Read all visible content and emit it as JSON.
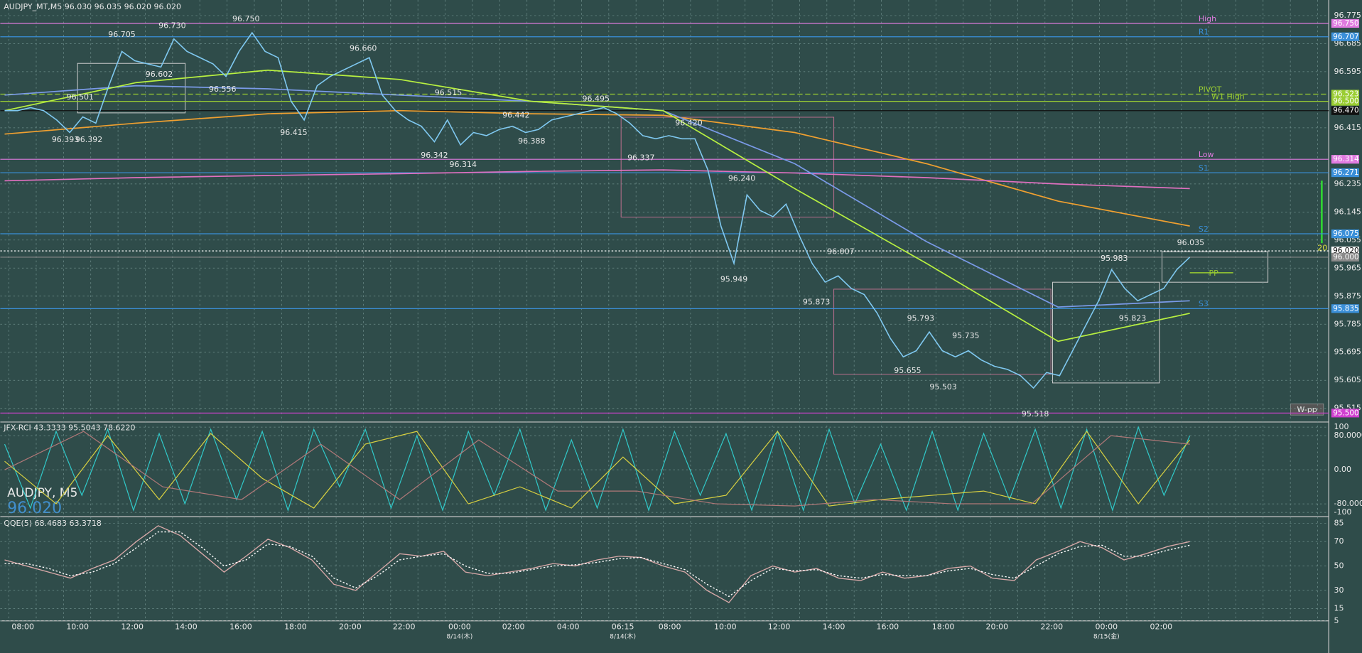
{
  "header": "AUDJPY_MT,M5  96.030 96.035 96.020 96.020",
  "watermark": {
    "symbol": "AUDJPY, M5",
    "price": "96.020"
  },
  "main": {
    "ylim": [
      95.474,
      96.825
    ],
    "yticks": [
      96.775,
      96.685,
      96.595,
      96.415,
      96.235,
      96.145,
      96.055,
      95.965,
      95.875,
      95.785,
      95.695,
      95.605,
      95.515
    ],
    "price": {
      "color": "#7fc8f0",
      "values": [
        96.47,
        96.47,
        96.48,
        96.47,
        96.44,
        96.4,
        96.45,
        96.43,
        96.55,
        96.66,
        96.63,
        96.62,
        96.61,
        96.7,
        96.66,
        96.64,
        96.62,
        96.58,
        96.66,
        96.72,
        96.66,
        96.64,
        96.5,
        96.44,
        96.55,
        96.58,
        96.6,
        96.62,
        96.64,
        96.52,
        96.47,
        96.44,
        96.42,
        96.37,
        96.44,
        96.36,
        96.4,
        96.39,
        96.41,
        96.42,
        96.4,
        96.41,
        96.44,
        96.45,
        96.46,
        96.47,
        96.48,
        96.46,
        96.43,
        96.39,
        96.38,
        96.39,
        96.38,
        96.38,
        96.28,
        96.1,
        95.98,
        96.2,
        96.15,
        96.13,
        96.17,
        96.07,
        95.98,
        95.92,
        95.94,
        95.9,
        95.88,
        95.82,
        95.74,
        95.68,
        95.7,
        95.76,
        95.7,
        95.68,
        95.7,
        95.67,
        95.65,
        95.64,
        95.62,
        95.58,
        95.63,
        95.62,
        95.7,
        95.78,
        95.86,
        95.96,
        95.9,
        95.86,
        95.88,
        95.9,
        95.96,
        96.0
      ]
    },
    "moving_averages": [
      {
        "color": "#f0a030",
        "values": [
          96.395,
          96.43,
          96.46,
          96.47,
          96.46,
          96.455,
          96.4,
          96.3,
          96.18,
          96.1
        ]
      },
      {
        "color": "#e070c0",
        "values": [
          96.245,
          96.255,
          96.262,
          96.268,
          96.275,
          96.28,
          96.27,
          96.255,
          96.235,
          96.22
        ]
      },
      {
        "color": "#7a9ae8",
        "values": [
          96.52,
          96.55,
          96.54,
          96.52,
          96.5,
          96.47,
          96.3,
          96.05,
          95.84,
          95.86
        ]
      },
      {
        "color": "#b8f040",
        "values": [
          96.47,
          96.56,
          96.6,
          96.57,
          96.5,
          96.47,
          96.22,
          95.98,
          95.73,
          95.82
        ]
      }
    ],
    "levels": [
      {
        "value": 96.75,
        "price_label": "96.750",
        "name": "High",
        "color": "#e07be0"
      },
      {
        "value": 96.707,
        "price_label": "96.707",
        "name": "R1",
        "color": "#3a8fd8"
      },
      {
        "value": 96.523,
        "price_label": "96.523",
        "name": "PIVOT",
        "color": "#9acd32"
      },
      {
        "value": 96.5,
        "price_label": "96.500",
        "name": "W1 High",
        "color": "#9acd32"
      },
      {
        "value": 96.47,
        "price_label": "96.470",
        "color": "#111111"
      },
      {
        "value": 96.314,
        "price_label": "96.314",
        "name": "Low",
        "color": "#e07be0"
      },
      {
        "value": 96.271,
        "price_label": "96.271",
        "name": "S1",
        "color": "#3a8fd8"
      },
      {
        "value": 96.075,
        "price_label": "96.075",
        "name": "S2",
        "color": "#3a8fd8"
      },
      {
        "value": 96.02,
        "price_label": "96.020",
        "color": "#ffffff"
      },
      {
        "value": 96.0,
        "price_label": "96.000",
        "color": "#8a8a8a"
      },
      {
        "value": 95.835,
        "price_label": "95.835",
        "name": "S3",
        "color": "#3a8fd8"
      },
      {
        "value": 95.5,
        "price_label": "95.500",
        "color": "#d040d0"
      }
    ],
    "pp": {
      "name": "PP",
      "value": 95.95,
      "color": "#9acd32"
    },
    "annotations": [
      {
        "value": 96.705,
        "label": "96.705"
      },
      {
        "value": 96.73,
        "label": "96.730"
      },
      {
        "value": 96.75,
        "label": "96.750"
      },
      {
        "value": 96.501,
        "label": "96.501"
      },
      {
        "value": 96.602,
        "label": "96.602"
      },
      {
        "value": 96.556,
        "label": "96.556"
      },
      {
        "value": 96.66,
        "label": "96.660"
      },
      {
        "value": 96.393,
        "label": "96.393"
      },
      {
        "value": 96.392,
        "label": "96.392"
      },
      {
        "value": 96.415,
        "label": "96.415"
      },
      {
        "value": 96.515,
        "label": "96.515"
      },
      {
        "value": 96.442,
        "label": "96.442"
      },
      {
        "value": 96.388,
        "label": "96.388"
      },
      {
        "value": 96.495,
        "label": "96.495"
      },
      {
        "value": 96.342,
        "label": "96.342"
      },
      {
        "value": 96.314,
        "label": "96.314"
      },
      {
        "value": 96.337,
        "label": "96.337"
      },
      {
        "value": 96.42,
        "label": "96.420"
      },
      {
        "value": 96.24,
        "label": "96.240"
      },
      {
        "value": 95.949,
        "label": "95.949"
      },
      {
        "value": 96.007,
        "label": "96.007"
      },
      {
        "value": 95.873,
        "label": "95.873"
      },
      {
        "value": 95.793,
        "label": "95.793"
      },
      {
        "value": 95.735,
        "label": "95.735"
      },
      {
        "value": 95.655,
        "label": "95.655"
      },
      {
        "value": 95.503,
        "label": "95.503"
      },
      {
        "value": 95.518,
        "label": "95.518"
      },
      {
        "value": 95.983,
        "label": "95.983"
      },
      {
        "value": 95.823,
        "label": "95.823"
      },
      {
        "value": 96.035,
        "label": "96.035"
      }
    ],
    "wpp": "W-pp",
    "side_value": "20"
  },
  "rci": {
    "header": "JFX-RCI 43.3333 95.5043 78.6220",
    "ylim": [
      -106,
      110
    ],
    "yticks": [
      100,
      {
        "value": 80,
        "label": "80.0000"
      },
      {
        "value": 0,
        "label": "0.00"
      },
      {
        "value": -80,
        "label": "-80.0000"
      },
      -100
    ],
    "series": [
      {
        "color": "#30c8c8",
        "values": [
          60,
          -90,
          90,
          -60,
          95,
          -95,
          85,
          -80,
          95,
          -70,
          90,
          -95,
          95,
          -40,
          95,
          -90,
          80,
          -95,
          90,
          -60,
          95,
          -95,
          70,
          -90,
          95,
          -95,
          90,
          -60,
          85,
          -95,
          90,
          -95,
          95,
          -80,
          60,
          -95,
          90,
          -95,
          85,
          -70,
          95,
          -90,
          95,
          -95,
          100,
          -60,
          80
        ]
      },
      {
        "color": "#d8d040",
        "values": [
          20,
          -80,
          80,
          -70,
          85,
          -20,
          -90,
          60,
          90,
          -80,
          -40,
          -90,
          30,
          -80,
          -60,
          90,
          -85,
          -70,
          -60,
          -50,
          -80,
          90,
          -80,
          70
        ]
      },
      {
        "color": "#b07878",
        "values": [
          0,
          90,
          -40,
          -70,
          60,
          -70,
          70,
          -50,
          -50,
          -80,
          -85,
          -70,
          -80,
          -80,
          80,
          60
        ]
      }
    ]
  },
  "qqe": {
    "header": "QQE(5) 68.4683 63.3718",
    "ylim": [
      5,
      89
    ],
    "yticks": [
      85,
      70,
      50,
      30,
      15,
      5
    ],
    "series": [
      {
        "color": "#d8a8a8",
        "dash": false,
        "values": [
          55,
          50,
          45,
          40,
          48,
          55,
          70,
          83,
          75,
          60,
          45,
          58,
          72,
          65,
          55,
          35,
          30,
          45,
          60,
          58,
          62,
          45,
          42,
          45,
          48,
          52,
          50,
          55,
          58,
          57,
          50,
          45,
          30,
          20,
          42,
          50,
          45,
          48,
          40,
          38,
          45,
          40,
          42,
          48,
          50,
          40,
          38,
          55,
          62,
          70,
          65,
          55,
          60,
          66,
          70
        ]
      },
      {
        "color": "#ffffff",
        "dash": true,
        "values": [
          52,
          52,
          48,
          42,
          45,
          52,
          65,
          78,
          78,
          65,
          50,
          55,
          68,
          66,
          58,
          40,
          32,
          42,
          55,
          58,
          60,
          50,
          44,
          44,
          47,
          50,
          51,
          53,
          56,
          57,
          52,
          47,
          35,
          25,
          38,
          48,
          46,
          47,
          42,
          40,
          43,
          42,
          42,
          46,
          48,
          43,
          40,
          50,
          60,
          66,
          67,
          58,
          58,
          63,
          67
        ]
      }
    ]
  },
  "time_axis": {
    "labels": [
      "08:00",
      "10:00",
      "12:00",
      "14:00",
      "16:00",
      "18:00",
      "20:00",
      "22:00",
      "00:00",
      "02:00",
      "04:00",
      "06:15",
      "08:00",
      "10:00",
      "12:00",
      "14:00",
      "16:00",
      "18:00",
      "20:00",
      "22:00",
      "00:00",
      "02:00"
    ],
    "dates": [
      "8/14(木)",
      "8/14(木)",
      "8/15(金)"
    ]
  }
}
